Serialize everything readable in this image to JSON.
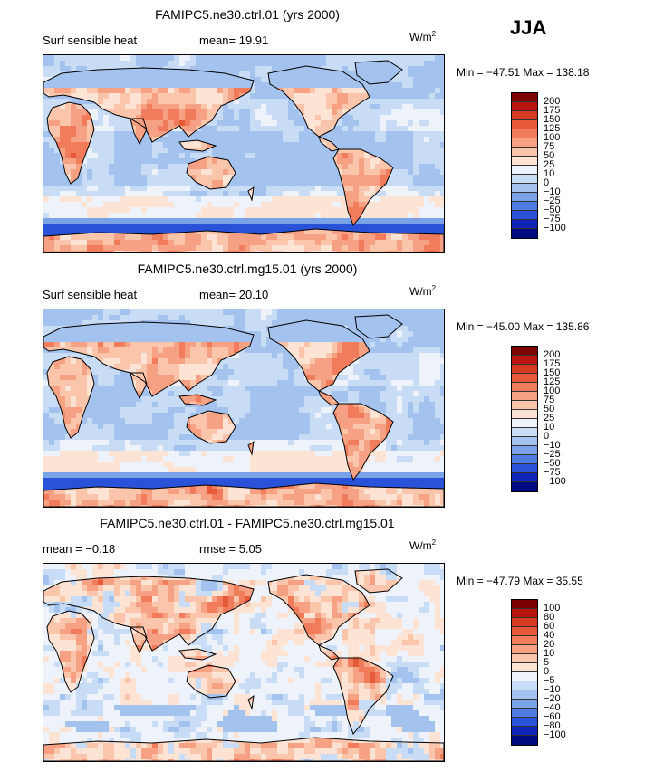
{
  "season": "JJA",
  "panels": [
    {
      "title": "FAMIPC5.ne30.ctrl.01 (yrs 2000)",
      "left_label": "Surf sensible heat",
      "middle_label": "mean=  19.91",
      "units": "W/m",
      "units_sup": "2",
      "minmax": "Min = −47.51 Max = 138.18"
    },
    {
      "title": "FAMIPC5.ne30.ctrl.mg15.01 (yrs 2000)",
      "left_label": "Surf sensible heat",
      "middle_label": "mean=  20.10",
      "units": "W/m",
      "units_sup": "2",
      "minmax": "Min = −45.00 Max = 135.86"
    },
    {
      "title": "FAMIPC5.ne30.ctrl.01 - FAMIPC5.ne30.ctrl.mg15.01",
      "left_label": "mean =  −0.18",
      "middle_label": "rmse =    5.05",
      "units": "W/m",
      "units_sup": "2",
      "minmax": "Min = −47.79 Max =  35.55"
    }
  ],
  "chart_data": [
    {
      "type": "heatmap",
      "title": "FAMIPC5.ne30.ctrl.01 (yrs 2000)",
      "field": "Surf sensible heat",
      "mean": 19.91,
      "min": -47.51,
      "max": 138.18,
      "units": "W/m2",
      "colorbar_levels": [
        "200",
        "175",
        "150",
        "125",
        "100",
        "75",
        "50",
        "25",
        "10",
        "0",
        "−10",
        "−25",
        "−50",
        "−75",
        "−100"
      ],
      "colorbar_colors": [
        "#7b0000",
        "#b8160f",
        "#d63a22",
        "#e65a3a",
        "#f07c5c",
        "#f6a184",
        "#fbc5ab",
        "#fde3d3",
        "#eef3fb",
        "#c9dcf5",
        "#a3c2ee",
        "#7aa2e6",
        "#4f7ce0",
        "#2a52d8",
        "#0f25b5",
        "#000a80"
      ]
    },
    {
      "type": "heatmap",
      "title": "FAMIPC5.ne30.ctrl.mg15.01 (yrs 2000)",
      "field": "Surf sensible heat",
      "mean": 20.1,
      "min": -45.0,
      "max": 135.86,
      "units": "W/m2",
      "colorbar_levels": [
        "200",
        "175",
        "150",
        "125",
        "100",
        "75",
        "50",
        "25",
        "10",
        "0",
        "−10",
        "−25",
        "−50",
        "−75",
        "−100"
      ],
      "colorbar_colors": [
        "#7b0000",
        "#b8160f",
        "#d63a22",
        "#e65a3a",
        "#f07c5c",
        "#f6a184",
        "#fbc5ab",
        "#fde3d3",
        "#eef3fb",
        "#c9dcf5",
        "#a3c2ee",
        "#7aa2e6",
        "#4f7ce0",
        "#2a52d8",
        "#0f25b5",
        "#000a80"
      ]
    },
    {
      "type": "heatmap",
      "title": "FAMIPC5.ne30.ctrl.01 - FAMIPC5.ne30.ctrl.mg15.01",
      "mean": -0.18,
      "rmse": 5.05,
      "min": -47.79,
      "max": 35.55,
      "units": "W/m2",
      "colorbar_levels": [
        "100",
        "80",
        "60",
        "40",
        "20",
        "10",
        "5",
        "0",
        "−5",
        "−10",
        "−20",
        "−40",
        "−60",
        "−80",
        "−100"
      ],
      "colorbar_colors": [
        "#7b0000",
        "#b8160f",
        "#d63a22",
        "#e65a3a",
        "#f07c5c",
        "#f6a184",
        "#fbc5ab",
        "#fde3d3",
        "#eef3fb",
        "#c9dcf5",
        "#a3c2ee",
        "#7aa2e6",
        "#4f7ce0",
        "#2a52d8",
        "#0f25b5",
        "#000a80"
      ]
    }
  ]
}
